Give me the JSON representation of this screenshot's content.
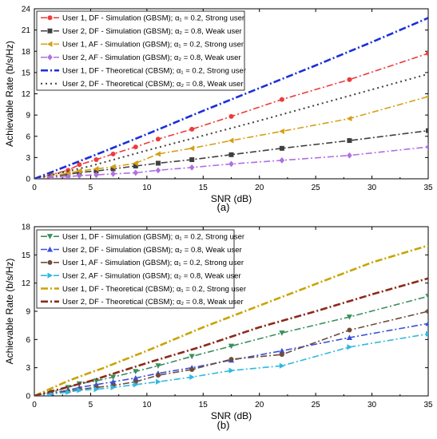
{
  "chart_data": [
    {
      "type": "line",
      "panel_label": "(a)",
      "xlabel": "SNR (dB)",
      "ylabel": "Achievable Rate (b/s/Hz)",
      "xlim": [
        0,
        35
      ],
      "ylim": [
        0,
        24
      ],
      "xticks": [
        0,
        5,
        10,
        15,
        20,
        25,
        30,
        35
      ],
      "yticks": [
        0,
        3,
        6,
        9,
        12,
        15,
        18,
        21,
        24
      ],
      "grid": false,
      "legend_position": "top-left",
      "series": [
        {
          "name": "User 1, DF - Simulation (GBSM); α₁ = 0.2, Strong user",
          "color": "#ee3a3a",
          "marker": "circle",
          "dash": "dashdot",
          "x": [
            0,
            1.5,
            3,
            4,
            5.5,
            7,
            9,
            11,
            14,
            17.5,
            22,
            28,
            35
          ],
          "y": [
            0,
            0.6,
            1.2,
            2.0,
            2.7,
            3.5,
            4.5,
            5.6,
            7.0,
            8.8,
            11.2,
            14.0,
            17.7
          ]
        },
        {
          "name": "User 2, DF - Simulation (GBSM); α₂ = 0.8, Weak user",
          "color": "#404040",
          "marker": "square",
          "dash": "dashdot",
          "x": [
            0,
            1.5,
            3,
            4,
            5.5,
            7,
            9,
            11,
            14,
            17.5,
            22,
            28,
            35
          ],
          "y": [
            0,
            0.3,
            0.6,
            0.9,
            1.1,
            1.4,
            1.8,
            2.2,
            2.7,
            3.4,
            4.3,
            5.4,
            6.8
          ]
        },
        {
          "name": "User 1, AF - Simulation (GBSM); α₁ = 0.2, Strong user",
          "color": "#d4a017",
          "marker": "triangle-left",
          "dash": "dashdot",
          "x": [
            0,
            1.5,
            3,
            4,
            5.5,
            7,
            9,
            11,
            14,
            17.5,
            22,
            28,
            35
          ],
          "y": [
            0,
            0.4,
            0.8,
            1.1,
            1.4,
            1.7,
            2.2,
            3.5,
            4.3,
            5.4,
            6.7,
            8.5,
            11.6
          ]
        },
        {
          "name": "User 2, AF - Simulation (GBSM); α₂ = 0.8, Weak user",
          "color": "#b070e0",
          "marker": "diamond",
          "dash": "dashdot",
          "x": [
            0,
            1.5,
            3,
            4,
            5.5,
            7,
            9,
            11,
            14,
            17.5,
            22,
            28,
            35
          ],
          "y": [
            0,
            0.2,
            0.3,
            0.45,
            0.55,
            0.7,
            0.85,
            1.2,
            1.6,
            2.1,
            2.6,
            3.3,
            4.5
          ]
        },
        {
          "name": "User 1, DF - Theoretical (CBSM); α₁ = 0.2, Strong user",
          "color": "#1c2fd8",
          "marker": "none",
          "dash": "dashdot-bold",
          "x": [
            0,
            5,
            10,
            15,
            20,
            25,
            30,
            35
          ],
          "y": [
            0,
            3.1,
            6.3,
            9.6,
            12.8,
            16.0,
            19.3,
            22.7
          ]
        },
        {
          "name": "User 2, DF - Theoretical (CBSM); α₂ = 0.8, Weak user",
          "color": "#404040",
          "marker": "none",
          "dash": "dotted",
          "x": [
            0,
            5,
            10,
            15,
            20,
            25,
            30,
            35
          ],
          "y": [
            0,
            1.8,
            4.0,
            6.1,
            8.2,
            10.4,
            12.6,
            14.8
          ]
        }
      ]
    },
    {
      "type": "line",
      "panel_label": "(b)",
      "xlabel": "SNR (dB)",
      "ylabel": "Achievable Rate (b/s/Hz)",
      "xlim": [
        0,
        35
      ],
      "ylim": [
        0,
        18
      ],
      "xticks": [
        0,
        5,
        10,
        15,
        20,
        25,
        30,
        35
      ],
      "yticks": [
        0,
        3,
        6,
        9,
        12,
        15,
        18
      ],
      "grid": false,
      "legend_position": "top-left",
      "series": [
        {
          "name": "User 1, DF - Simulation (GBSM); α₁ = 0.2, Strong user",
          "color": "#3a8f5e",
          "marker": "triangle-down",
          "dash": "dashdot",
          "x": [
            0,
            1.5,
            3,
            4,
            5.5,
            7,
            9,
            11,
            14,
            17.5,
            22,
            28,
            35
          ],
          "y": [
            0,
            0.4,
            0.9,
            1.3,
            1.6,
            2.0,
            2.6,
            3.2,
            4.2,
            5.3,
            6.7,
            8.4,
            10.6
          ]
        },
        {
          "name": "User 2, DF - Simulation (GBSM); α₂ = 0.8, Weak user",
          "color": "#3a50d8",
          "marker": "triangle-up",
          "dash": "dashdot",
          "x": [
            0,
            1.5,
            3,
            4,
            5.5,
            7,
            9,
            11,
            14,
            17.5,
            22,
            28,
            35
          ],
          "y": [
            0,
            0.3,
            0.6,
            0.9,
            1.2,
            1.5,
            1.9,
            2.4,
            3.0,
            3.8,
            4.8,
            6.2,
            7.7
          ]
        },
        {
          "name": "User 1, AF - Simulation (GBSM); α₁ = 0.2, Strong user",
          "color": "#6e4c3c",
          "marker": "circle",
          "dash": "dashdot",
          "x": [
            0,
            1.5,
            3,
            4,
            5.5,
            7,
            9,
            11,
            14,
            17.5,
            22,
            28,
            35
          ],
          "y": [
            0,
            0.3,
            0.5,
            0.7,
            0.9,
            1.1,
            1.5,
            2.2,
            2.8,
            3.9,
            4.4,
            7.0,
            9.0
          ]
        },
        {
          "name": "User 2, AF - Simulation (GBSM); α₂ = 0.8, Weak user",
          "color": "#30b8e0",
          "marker": "triangle-right",
          "dash": "dashdot",
          "x": [
            0,
            1.5,
            3,
            4,
            5.5,
            7,
            9,
            11,
            14,
            17.5,
            22,
            28,
            35
          ],
          "y": [
            0,
            0.2,
            0.4,
            0.6,
            0.7,
            0.9,
            1.2,
            1.5,
            2.0,
            2.7,
            3.2,
            5.2,
            6.6
          ]
        },
        {
          "name": "User 1, DF - Theoretical (CBSM); α₁ = 0.2, Strong user",
          "color": "#c9a400",
          "marker": "none",
          "dash": "dashdot-bold",
          "x": [
            0,
            3,
            5,
            6,
            10,
            15,
            20,
            25,
            30,
            35
          ],
          "y": [
            0,
            1.6,
            2.5,
            2.9,
            4.8,
            7.3,
            9.6,
            11.9,
            14.2,
            16.0
          ]
        },
        {
          "name": "User 2, DF - Theoretical (CBSM); α₂ = 0.8, Weak user",
          "color": "#8b2a1a",
          "marker": "none",
          "dash": "dashdot-bold",
          "x": [
            0,
            5,
            10,
            15,
            20,
            25,
            30,
            35
          ],
          "y": [
            0,
            1.6,
            3.5,
            5.3,
            7.3,
            9.0,
            10.8,
            12.5
          ]
        }
      ]
    }
  ]
}
